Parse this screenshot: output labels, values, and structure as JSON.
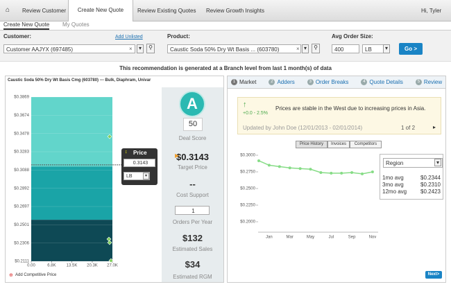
{
  "nav": {
    "tabs": [
      "Review Customer",
      "Create New Quote",
      "Review Existing Quotes",
      "Review Growth Insights"
    ],
    "user": "Hi, Tyler"
  },
  "subtabs": [
    "Create New Quote",
    "My Quotes"
  ],
  "form": {
    "customer_label": "Customer:",
    "add_unlisted": "Add Unlisted",
    "customer": "Customer AAJYX (697485)",
    "product_label": "Product:",
    "product": "Caustic Soda 50% Dry Wt Basis ... (603780)",
    "order_label": "Avg Order Size:",
    "quantity": "400",
    "unit": "LB",
    "go": "Go >"
  },
  "banner": "This recommendation is generated at a Branch level from last 1 month(s) of data",
  "left_panel": {
    "title": "Caustic Soda 50% Dry Wt Basis Cmg (603780) --- Bulk, Diaphram, Univar",
    "chart_data": {
      "type": "band",
      "ylim": [
        0.2111,
        0.3869
      ],
      "yticks": [
        {
          "value": 0.3869,
          "label": "$0.3869"
        },
        {
          "value": 0.3674,
          "label": "$0.3674"
        },
        {
          "value": 0.3478,
          "label": "$0.3478"
        },
        {
          "value": 0.3283,
          "label": "$0.3283"
        },
        {
          "value": 0.3088,
          "label": "$0.3088"
        },
        {
          "value": 0.2892,
          "label": "$0.2892"
        },
        {
          "value": 0.2697,
          "label": "$0.2697"
        },
        {
          "value": 0.2501,
          "label": "$0.2501"
        },
        {
          "value": 0.2306,
          "label": "$0.2306"
        },
        {
          "value": 0.2111,
          "label": "$0.2111"
        }
      ],
      "xlim": [
        0,
        27000
      ],
      "xticks": [
        {
          "value": 0,
          "label": "0.00"
        },
        {
          "value": 6800,
          "label": "6.8K"
        },
        {
          "value": 13500,
          "label": "13.5K"
        },
        {
          "value": 20300,
          "label": "20.3K"
        },
        {
          "value": 27000,
          "label": "27.0K"
        }
      ],
      "bands": [
        {
          "color": "#62d5cb",
          "values": [
            0.3125,
            0.3869
          ]
        },
        {
          "color": "#1aa4a7",
          "values": [
            0.2555,
            0.3125
          ]
        },
        {
          "color": "#0e4955",
          "values": [
            0.2111,
            0.2555
          ]
        }
      ],
      "points": {
        "color": "#7fd05c",
        "x": [
          26077,
          25846,
          26077,
          26538
        ],
        "y": [
          0.3446,
          0.2348,
          0.2311,
          0.2118
        ]
      },
      "price": {
        "label": "Price",
        "value": 0.3143,
        "unit": "LB"
      }
    },
    "add_competitive": "Add Competitive Price"
  },
  "score": {
    "grade": "A",
    "score": 50,
    "score_label": "Deal Score",
    "target_price": "$0.3143",
    "target_label": "Target Price",
    "cost": "--",
    "cost_label": "Cost Support",
    "orders": "1",
    "orders_label": "Orders Per Year",
    "sales": "$132",
    "sales_label": "Estimated Sales",
    "rgm": "$34",
    "rgm_label": "Estimated RGM"
  },
  "right_panel": {
    "tabs": [
      {
        "num": "1",
        "label": "Market"
      },
      {
        "num": "2",
        "label": "Adders"
      },
      {
        "num": "3",
        "label": "Order Breaks"
      },
      {
        "num": "4",
        "label": "Quote Details"
      },
      {
        "num": "5",
        "label": "Review"
      }
    ],
    "alert": {
      "change": "+0.0 - 2.5%",
      "message": "Prices are stable in the West due to increasing prices in Asia.",
      "updated": "Updated by John Doe (12/01/2013 - 02/01/2014)",
      "pager": "1 of 2"
    },
    "chart_buttons": [
      "Price History",
      "Invoices",
      "Competitors"
    ],
    "chart_data": {
      "type": "line",
      "color": "#86dc86",
      "categories": [
        null,
        "Jan",
        null,
        "Mar",
        null,
        "May",
        null,
        "Jul",
        null,
        "Sep",
        null,
        "Nov"
      ],
      "values": [
        0.2917,
        0.285,
        0.283,
        0.281,
        0.28,
        0.279,
        0.274,
        0.273,
        0.273,
        0.274,
        0.272,
        0.275
      ],
      "ylim": [
        0.19,
        0.305
      ],
      "yticks": [
        {
          "value": 0.3,
          "label": "$0.3000"
        },
        {
          "value": 0.275,
          "label": "$0.2750"
        },
        {
          "value": 0.25,
          "label": "$0.2500"
        },
        {
          "value": 0.225,
          "label": "$0.2250"
        },
        {
          "value": 0.2,
          "label": "$0.2000"
        }
      ]
    },
    "region": {
      "select": "Region",
      "stats": [
        [
          "1mo avg",
          "$0.2344"
        ],
        [
          "3mo avg",
          "$0.2310"
        ],
        [
          "12mo avg",
          "$0.2423"
        ]
      ]
    },
    "next": "Next>"
  }
}
